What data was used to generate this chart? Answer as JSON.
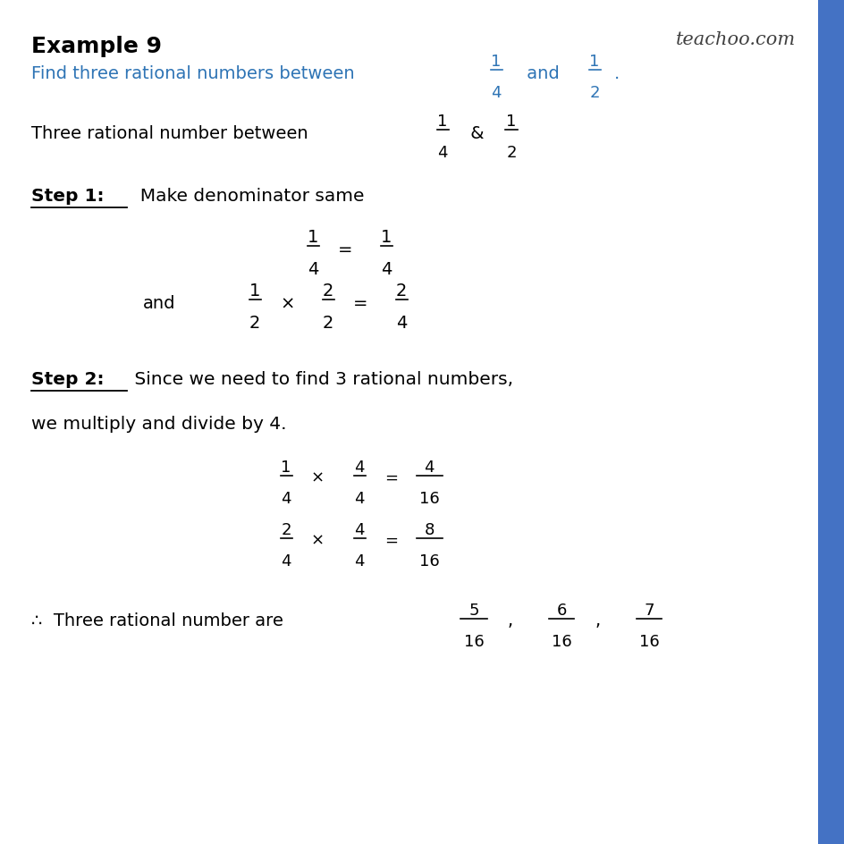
{
  "background_color": "#ffffff",
  "right_border_color": "#4472c4",
  "title": "Example 9",
  "title_color": "#000000",
  "title_fontsize": 18,
  "watermark": "teachoo.com",
  "watermark_color": "#404040",
  "watermark_fontsize": 15,
  "blue_color": "#2e74b5",
  "black_color": "#000000",
  "heading_line1": "Find three rational numbers between",
  "body_intro": "Three rational number between",
  "step1_label": "Step 1:",
  "step1_text": "  Make denominator same",
  "step2_label": "Step 2:",
  "step2_text": " Since we need to find 3 rational numbers,",
  "step2_text2": "we multiply and divide by 4.",
  "conclusion_start": "∴  Three rational number are"
}
